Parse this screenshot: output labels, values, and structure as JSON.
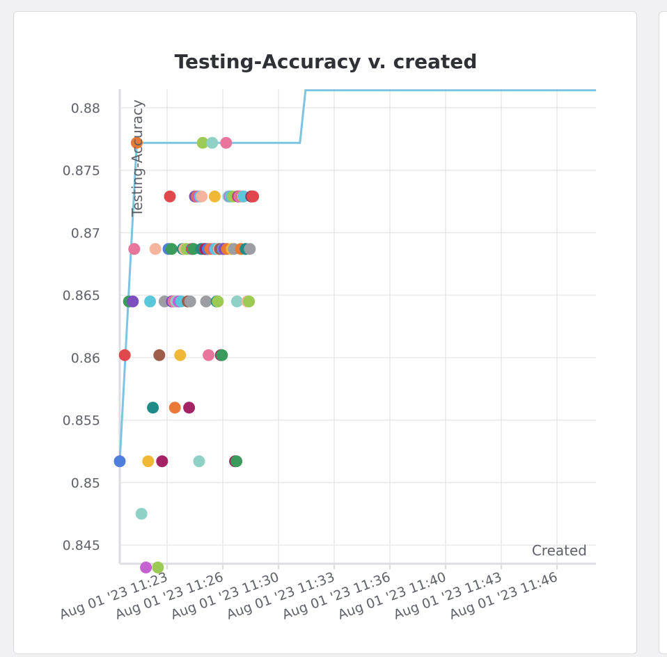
{
  "chart_data": {
    "type": "scatter",
    "title": "Testing-Accuracy v. created",
    "xlabel": "Created",
    "ylabel": "Testing-Accuracy",
    "xlim": [
      "2023-08-01T11:20:30",
      "2023-08-01T11:49:00"
    ],
    "ylim": [
      0.8435,
      0.8815
    ],
    "y_ticks": [
      0.845,
      0.85,
      0.855,
      0.86,
      0.865,
      0.87,
      0.875,
      0.88
    ],
    "y_tick_labels": [
      "0.845",
      "0.85",
      "0.855",
      "0.86",
      "0.865",
      "0.87",
      "0.875",
      "0.88"
    ],
    "x_ticks": [
      "2023-08-01T11:23:20",
      "2023-08-01T11:26:40",
      "2023-08-01T11:30:00",
      "2023-08-01T11:33:20",
      "2023-08-01T11:36:40",
      "2023-08-01T11:40:00",
      "2023-08-01T11:43:20",
      "2023-08-01T11:46:40"
    ],
    "x_tick_labels": [
      "Aug 01 '23 11:23",
      "Aug 01 '23 11:26",
      "Aug 01 '23 11:30",
      "Aug 01 '23 11:33",
      "Aug 01 '23 11:36",
      "Aug 01 '23 11:40",
      "Aug 01 '23 11:43",
      "Aug 01 '23 11:46"
    ],
    "grid": true,
    "best_line_color": "#7cc4e2",
    "best_line": [
      {
        "x": "2023-08-01T11:20:30",
        "y": 0.8517
      },
      {
        "x": "2023-08-01T11:21:31",
        "y": 0.8772
      },
      {
        "x": "2023-08-01T11:31:17",
        "y": 0.8772
      },
      {
        "x": "2023-08-01T11:31:37",
        "y": 0.8814
      },
      {
        "x": "2023-08-01T11:49:00",
        "y": 0.8814
      }
    ],
    "points": [
      {
        "x": "2023-08-01T11:20:30",
        "y": 0.8517,
        "color": "#4e7fdc"
      },
      {
        "x": "2023-08-01T11:20:48",
        "y": 0.8602,
        "color": "#e0484b"
      },
      {
        "x": "2023-08-01T11:21:03",
        "y": 0.8645,
        "color": "#3a9b5c"
      },
      {
        "x": "2023-08-01T11:21:17",
        "y": 0.8645,
        "color": "#7d4fbe"
      },
      {
        "x": "2023-08-01T11:21:22",
        "y": 0.8687,
        "color": "#e8759b"
      },
      {
        "x": "2023-08-01T11:21:31",
        "y": 0.8772,
        "color": "#ea7836"
      },
      {
        "x": "2023-08-01T11:21:48",
        "y": 0.8475,
        "color": "#8fd1c4"
      },
      {
        "x": "2023-08-01T11:22:04",
        "y": 0.8432,
        "color": "#c561d3"
      },
      {
        "x": "2023-08-01T11:22:12",
        "y": 0.8517,
        "color": "#efb937"
      },
      {
        "x": "2023-08-01T11:22:19",
        "y": 0.8645,
        "color": "#5cc6da"
      },
      {
        "x": "2023-08-01T11:22:29",
        "y": 0.856,
        "color": "#1f8a86"
      },
      {
        "x": "2023-08-01T11:22:38",
        "y": 0.8687,
        "color": "#f4b49e"
      },
      {
        "x": "2023-08-01T11:22:47",
        "y": 0.8432,
        "color": "#9ccb55"
      },
      {
        "x": "2023-08-01T11:22:52",
        "y": 0.8602,
        "color": "#9c5d4b"
      },
      {
        "x": "2023-08-01T11:23:02",
        "y": 0.8517,
        "color": "#a52265"
      },
      {
        "x": "2023-08-01T11:23:11",
        "y": 0.8645,
        "color": "#9c9ea4"
      },
      {
        "x": "2023-08-01T11:23:25",
        "y": 0.8687,
        "color": "#4e7fdc"
      },
      {
        "x": "2023-08-01T11:23:30",
        "y": 0.8729,
        "color": "#e0484b"
      },
      {
        "x": "2023-08-01T11:23:36",
        "y": 0.8687,
        "color": "#3a9b5c"
      },
      {
        "x": "2023-08-01T11:23:37",
        "y": 0.8645,
        "color": "#7d4fbe"
      },
      {
        "x": "2023-08-01T11:23:43",
        "y": 0.8645,
        "color": "#e8759b"
      },
      {
        "x": "2023-08-01T11:23:48",
        "y": 0.856,
        "color": "#ea7836"
      },
      {
        "x": "2023-08-01T11:23:53",
        "y": 0.8645,
        "color": "#8fd1c4"
      },
      {
        "x": "2023-08-01T11:24:01",
        "y": 0.8645,
        "color": "#c561d3"
      },
      {
        "x": "2023-08-01T11:24:07",
        "y": 0.8602,
        "color": "#efb937"
      },
      {
        "x": "2023-08-01T11:24:11",
        "y": 0.8645,
        "color": "#5cc6da"
      },
      {
        "x": "2023-08-01T11:24:16",
        "y": 0.8687,
        "color": "#1f8a86"
      },
      {
        "x": "2023-08-01T11:24:22",
        "y": 0.8687,
        "color": "#f4b49e"
      },
      {
        "x": "2023-08-01T11:24:30",
        "y": 0.8687,
        "color": "#9ccb55"
      },
      {
        "x": "2023-08-01T11:24:34",
        "y": 0.8645,
        "color": "#9c5d4b"
      },
      {
        "x": "2023-08-01T11:24:39",
        "y": 0.856,
        "color": "#a52265"
      },
      {
        "x": "2023-08-01T11:24:43",
        "y": 0.8645,
        "color": "#9c9ea4"
      },
      {
        "x": "2023-08-01T11:24:48",
        "y": 0.8687,
        "color": "#4e7fdc"
      },
      {
        "x": "2023-08-01T11:24:51",
        "y": 0.8687,
        "color": "#e0484b"
      },
      {
        "x": "2023-08-01T11:24:55",
        "y": 0.8687,
        "color": "#3a9b5c"
      },
      {
        "x": "2023-08-01T11:25:00",
        "y": 0.8729,
        "color": "#7d4fbe"
      },
      {
        "x": "2023-08-01T11:25:07",
        "y": 0.8729,
        "color": "#ea7836"
      },
      {
        "x": "2023-08-01T11:25:13",
        "y": 0.8729,
        "color": "#c561d3"
      },
      {
        "x": "2023-08-01T11:25:15",
        "y": 0.8517,
        "color": "#8fd1c4"
      },
      {
        "x": "2023-08-01T11:25:19",
        "y": 0.8729,
        "color": "#5cc6da"
      },
      {
        "x": "2023-08-01T11:25:23",
        "y": 0.8687,
        "color": "#1f8a86"
      },
      {
        "x": "2023-08-01T11:25:24",
        "y": 0.8729,
        "color": "#f4b49e"
      },
      {
        "x": "2023-08-01T11:25:28",
        "y": 0.8772,
        "color": "#9ccb55"
      },
      {
        "x": "2023-08-01T11:25:35",
        "y": 0.8687,
        "color": "#9c5d4b"
      },
      {
        "x": "2023-08-01T11:25:38",
        "y": 0.8687,
        "color": "#a52265"
      },
      {
        "x": "2023-08-01T11:25:40",
        "y": 0.8645,
        "color": "#9c9ea4"
      },
      {
        "x": "2023-08-01T11:25:46",
        "y": 0.8687,
        "color": "#4e7fdc"
      },
      {
        "x": "2023-08-01T11:25:49",
        "y": 0.8602,
        "color": "#e8759b"
      },
      {
        "x": "2023-08-01T11:25:55",
        "y": 0.8687,
        "color": "#ea7836"
      },
      {
        "x": "2023-08-01T11:26:02",
        "y": 0.8772,
        "color": "#8fd1c4"
      },
      {
        "x": "2023-08-01T11:26:09",
        "y": 0.8687,
        "color": "#c561d3"
      },
      {
        "x": "2023-08-01T11:26:11",
        "y": 0.8729,
        "color": "#efb937"
      },
      {
        "x": "2023-08-01T11:26:13",
        "y": 0.8687,
        "color": "#5cc6da"
      },
      {
        "x": "2023-08-01T11:26:18",
        "y": 0.8645,
        "color": "#1f8a86"
      },
      {
        "x": "2023-08-01T11:26:22",
        "y": 0.8645,
        "color": "#9ccb55"
      },
      {
        "x": "2023-08-01T11:26:26",
        "y": 0.8687,
        "color": "#f4b49e"
      },
      {
        "x": "2023-08-01T11:26:30",
        "y": 0.8687,
        "color": "#9c5d4b"
      },
      {
        "x": "2023-08-01T11:26:33",
        "y": 0.8602,
        "color": "#a52265"
      },
      {
        "x": "2023-08-01T11:26:37",
        "y": 0.8602,
        "color": "#3a9b5c"
      },
      {
        "x": "2023-08-01T11:26:39",
        "y": 0.8687,
        "color": "#4e7fdc"
      },
      {
        "x": "2023-08-01T11:26:42",
        "y": 0.8687,
        "color": "#9c9ea4"
      },
      {
        "x": "2023-08-01T11:26:45",
        "y": 0.8687,
        "color": "#7d4fbe"
      },
      {
        "x": "2023-08-01T11:26:52",
        "y": 0.8772,
        "color": "#e8759b"
      },
      {
        "x": "2023-08-01T11:26:55",
        "y": 0.8687,
        "color": "#ea7836"
      },
      {
        "x": "2023-08-01T11:27:00",
        "y": 0.8729,
        "color": "#8fd1c4"
      },
      {
        "x": "2023-08-01T11:27:05",
        "y": 0.8729,
        "color": "#c561d3"
      },
      {
        "x": "2023-08-01T11:27:08",
        "y": 0.8729,
        "color": "#5cc6da"
      },
      {
        "x": "2023-08-01T11:27:12",
        "y": 0.8687,
        "color": "#efb937"
      },
      {
        "x": "2023-08-01T11:27:17",
        "y": 0.8729,
        "color": "#9ccb55"
      },
      {
        "x": "2023-08-01T11:27:20",
        "y": 0.8687,
        "color": "#9c9ea4"
      },
      {
        "x": "2023-08-01T11:27:24",
        "y": 0.8517,
        "color": "#a52265"
      },
      {
        "x": "2023-08-01T11:27:29",
        "y": 0.8517,
        "color": "#3a9b5c"
      },
      {
        "x": "2023-08-01T11:27:31",
        "y": 0.8645,
        "color": "#8fd1c4"
      },
      {
        "x": "2023-08-01T11:27:34",
        "y": 0.8729,
        "color": "#e0484b"
      },
      {
        "x": "2023-08-01T11:27:37",
        "y": 0.8729,
        "color": "#7d4fbe"
      },
      {
        "x": "2023-08-01T11:27:40",
        "y": 0.8729,
        "color": "#e8759b"
      },
      {
        "x": "2023-08-01T11:27:45",
        "y": 0.8687,
        "color": "#ea7836"
      },
      {
        "x": "2023-08-01T11:27:49",
        "y": 0.8729,
        "color": "#c561d3"
      },
      {
        "x": "2023-08-01T11:27:52",
        "y": 0.8729,
        "color": "#efb937"
      },
      {
        "x": "2023-08-01T11:27:55",
        "y": 0.8729,
        "color": "#5cc6da"
      },
      {
        "x": "2023-08-01T11:28:02",
        "y": 0.8687,
        "color": "#1f8a86"
      },
      {
        "x": "2023-08-01T11:28:08",
        "y": 0.8645,
        "color": "#f4b49e"
      },
      {
        "x": "2023-08-01T11:28:14",
        "y": 0.8645,
        "color": "#9ccb55"
      },
      {
        "x": "2023-08-01T11:28:17",
        "y": 0.8687,
        "color": "#9c9ea4"
      },
      {
        "x": "2023-08-01T11:28:22",
        "y": 0.8729,
        "color": "#a52265"
      },
      {
        "x": "2023-08-01T11:28:26",
        "y": 0.8729,
        "color": "#9c5d4b"
      },
      {
        "x": "2023-08-01T11:28:29",
        "y": 0.8729,
        "color": "#e0484b"
      }
    ]
  }
}
